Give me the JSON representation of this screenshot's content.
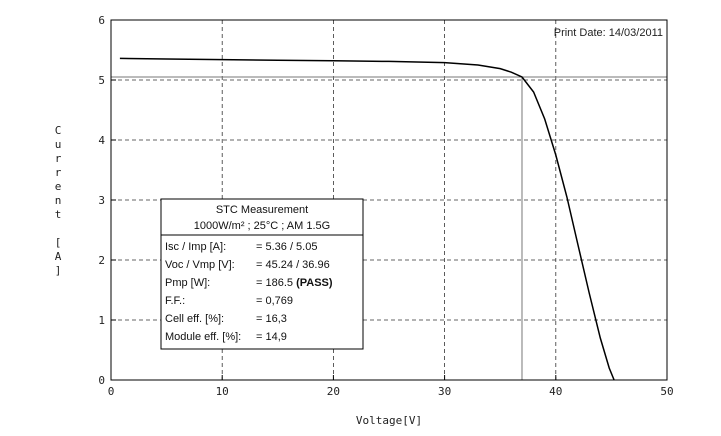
{
  "print_date": "Print Date: 14/03/2011",
  "measurement": {
    "title": "STC Measurement",
    "conditions": "1000W/m² ; 25°C ; AM 1.5G",
    "rows": [
      {
        "label": "Isc / Imp [A]:",
        "value": "= 5.36 / 5.05",
        "bold_part": ""
      },
      {
        "label": "Voc / Vmp [V]:",
        "value": "= 45.24 / 36.96",
        "bold_part": ""
      },
      {
        "label": "Pmp [W]:",
        "value": "= 186.5 ",
        "bold_part": "(PASS)"
      },
      {
        "label": "F.F.:",
        "value": "= 0,769",
        "bold_part": ""
      },
      {
        "label": "Cell eff. [%]:",
        "value": "= 16,3",
        "bold_part": ""
      },
      {
        "label": "Module eff. [%]:",
        "value": "= 14,9",
        "bold_part": ""
      }
    ]
  },
  "chart_data": {
    "type": "line",
    "xlabel": "Voltage[V]",
    "ylabel": "Current [A]",
    "ylabel_lines": [
      "C",
      "u",
      "r",
      "r",
      "e",
      "n",
      "t",
      "",
      "[",
      "A",
      "]"
    ],
    "xlim": [
      0,
      50
    ],
    "ylim": [
      0,
      6
    ],
    "xticks": [
      0,
      10,
      20,
      30,
      40,
      50
    ],
    "yticks": [
      0,
      1,
      2,
      3,
      4,
      5,
      6
    ],
    "grid": true,
    "series": [
      {
        "x": [
          0.8,
          5,
          10,
          15,
          20,
          25,
          30,
          33,
          35,
          36,
          36.96,
          38,
          39,
          40,
          41,
          42,
          43,
          44,
          44.8,
          45.24
        ],
        "y": [
          5.36,
          5.35,
          5.34,
          5.33,
          5.32,
          5.31,
          5.29,
          5.25,
          5.19,
          5.13,
          5.05,
          4.8,
          4.35,
          3.75,
          3.05,
          2.25,
          1.45,
          0.7,
          0.2,
          0
        ]
      }
    ],
    "reference_lines": {
      "vmp": 36.96,
      "imp": 5.05
    },
    "colors": {
      "line": "#000000",
      "grid": "#333333",
      "box_border": "#000000"
    }
  }
}
